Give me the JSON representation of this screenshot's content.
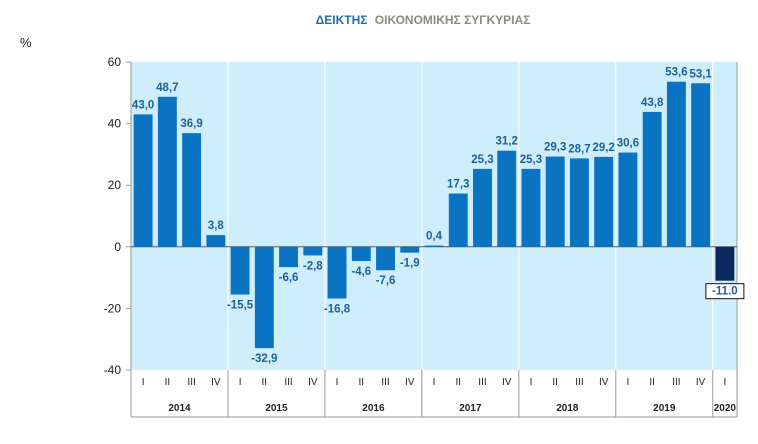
{
  "chart_data": {
    "type": "bar",
    "title_part1": "ΔΕΙΚΤΗΣ",
    "title_part2": "ΟΙΚΟΝΟΜΙΚΗΣ ΣΥΓΚΥΡΙΑΣ",
    "ylabel": "%",
    "ylim": [
      -40,
      60
    ],
    "yticks": [
      60,
      40,
      20,
      0,
      -20,
      -40
    ],
    "grid": false,
    "colors": {
      "bar": "#0a74c2",
      "highlight": "#0b2b5e",
      "plot_bg": "#cfeefb",
      "axis": "#9a9a9a"
    },
    "years": [
      {
        "label": "2014",
        "quarters": [
          "I",
          "II",
          "III",
          "IV"
        ],
        "values": [
          43.0,
          48.7,
          36.9,
          3.8
        ],
        "labels": [
          "43,0",
          "48,7",
          "36,9",
          "3,8"
        ]
      },
      {
        "label": "2015",
        "quarters": [
          "I",
          "II",
          "III",
          "IV"
        ],
        "values": [
          -15.5,
          -32.9,
          -6.6,
          -2.8
        ],
        "labels": [
          "-15,5",
          "-32,9",
          "-6,6",
          "-2,8"
        ]
      },
      {
        "label": "2016",
        "quarters": [
          "I",
          "II",
          "III",
          "IV"
        ],
        "values": [
          -16.8,
          -4.6,
          -7.6,
          -1.9
        ],
        "labels": [
          "-16,8",
          "-4,6",
          "-7,6",
          "-1,9"
        ]
      },
      {
        "label": "2017",
        "quarters": [
          "I",
          "II",
          "III",
          "IV"
        ],
        "values": [
          0.4,
          17.3,
          25.3,
          31.2
        ],
        "labels": [
          "0,4",
          "17,3",
          "25,3",
          "31,2"
        ]
      },
      {
        "label": "2018",
        "quarters": [
          "I",
          "II",
          "III",
          "IV"
        ],
        "values": [
          25.3,
          29.3,
          28.7,
          29.2
        ],
        "labels": [
          "25,3",
          "29,3",
          "28,7",
          "29,2"
        ]
      },
      {
        "label": "2019",
        "quarters": [
          "I",
          "II",
          "III",
          "IV"
        ],
        "values": [
          30.6,
          43.8,
          53.6,
          53.1
        ],
        "labels": [
          "30,6",
          "43,8",
          "53,6",
          "53,1"
        ]
      },
      {
        "label": "2020",
        "quarters": [
          "I"
        ],
        "values": [
          -11.0
        ],
        "labels": [
          "-11.0"
        ],
        "highlight": true
      }
    ]
  }
}
